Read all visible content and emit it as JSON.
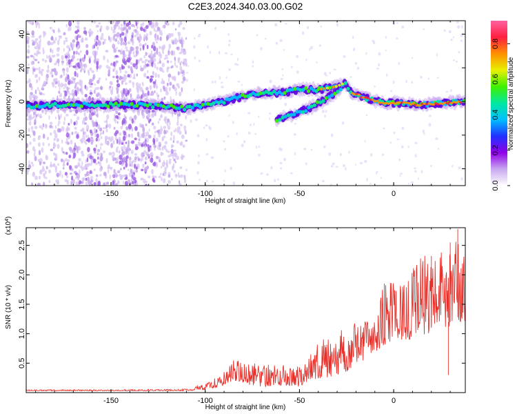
{
  "figure": {
    "title": "C2E3.2024.340.03.00.G02"
  },
  "chart_data": [
    {
      "type": "heatmap",
      "xlabel": "Height of straight line (km)",
      "ylabel": "Frequency (Hz)",
      "xlim": [
        -195,
        38
      ],
      "ylim": [
        -50,
        48
      ],
      "x_ticks": [
        -150,
        -100,
        -50,
        0
      ],
      "x_tick_labels": [
        "-150",
        "-100",
        "-50",
        "0"
      ],
      "y_ticks": [
        -40,
        -20,
        0,
        20,
        40
      ],
      "y_tick_labels": [
        "-40",
        "-20",
        "0",
        "20",
        "40"
      ],
      "grid": false,
      "colorbar": {
        "label": "Normalized spectral amplitude",
        "range": [
          0,
          0.93
        ],
        "ticks": [
          0.0,
          0.2,
          0.4,
          0.6,
          0.8
        ],
        "tick_labels": [
          "0.0",
          "0.2",
          "0.4",
          "0.6",
          "0.8"
        ],
        "colors": [
          "#ffffff",
          "#c8a8f0",
          "#9000e8",
          "#2030ff",
          "#00c0ff",
          "#00e8a0",
          "#40f000",
          "#e8f000",
          "#ff9000",
          "#ff2040",
          "#ff60a0"
        ]
      },
      "ridge": {
        "name": "main frequency ridge",
        "points": [
          [
            -195,
            -3
          ],
          [
            -180,
            -2
          ],
          [
            -165,
            -2
          ],
          [
            -150,
            -2
          ],
          [
            -135,
            -2
          ],
          [
            -120,
            -3
          ],
          [
            -110,
            -4
          ],
          [
            -100,
            -2
          ],
          [
            -90,
            0
          ],
          [
            -80,
            3
          ],
          [
            -70,
            5
          ],
          [
            -60,
            5
          ],
          [
            -50,
            7
          ],
          [
            -40,
            7
          ],
          [
            -30,
            9
          ],
          [
            -26,
            11
          ],
          [
            -22,
            5
          ],
          [
            -15,
            2
          ],
          [
            -5,
            -1
          ],
          [
            5,
            -1
          ],
          [
            15,
            -2
          ],
          [
            25,
            -1
          ],
          [
            38,
            0
          ]
        ]
      },
      "branch": {
        "name": "secondary branch",
        "points": [
          [
            -62,
            -11
          ],
          [
            -52,
            -7
          ],
          [
            -45,
            -4
          ],
          [
            -35,
            2
          ],
          [
            -28,
            8
          ]
        ]
      }
    },
    {
      "type": "line",
      "xlabel": "Height of straight line (km)",
      "ylabel": "SNR (10 * v/v)",
      "y_multiplier": "(x10",
      "y_multiplier_exp": "4",
      "y_multiplier_close": ")",
      "xlim": [
        -195,
        38
      ],
      "ylim": [
        0,
        2.8
      ],
      "x_ticks": [
        -150,
        -100,
        -50,
        0
      ],
      "x_tick_labels": [
        "-150",
        "-100",
        "-50",
        "0"
      ],
      "y_ticks": [
        0.5,
        1.0,
        1.5,
        2.0,
        2.5
      ],
      "y_tick_labels": [
        "0.5",
        "1.0",
        "1.5",
        "2.0",
        "2.5"
      ],
      "grid": false,
      "color": "#e8302a",
      "series": [
        {
          "name": "",
          "envelope": [
            [
              -195,
              0.03,
              0.05
            ],
            [
              -150,
              0.03,
              0.05
            ],
            [
              -110,
              0.03,
              0.06
            ],
            [
              -100,
              0.05,
              0.15
            ],
            [
              -90,
              0.12,
              0.35
            ],
            [
              -85,
              0.2,
              0.6
            ],
            [
              -80,
              0.15,
              0.5
            ],
            [
              -70,
              0.1,
              0.5
            ],
            [
              -60,
              0.12,
              0.45
            ],
            [
              -55,
              0.12,
              0.5
            ],
            [
              -50,
              0.1,
              0.45
            ],
            [
              -45,
              0.2,
              0.7
            ],
            [
              -40,
              0.2,
              0.85
            ],
            [
              -35,
              0.25,
              0.95
            ],
            [
              -30,
              0.3,
              1.05
            ],
            [
              -25,
              0.35,
              1.15
            ],
            [
              -20,
              0.5,
              1.25
            ],
            [
              -15,
              0.55,
              1.35
            ],
            [
              -10,
              0.65,
              1.45
            ],
            [
              -5,
              0.8,
              1.9
            ],
            [
              0,
              0.9,
              1.9
            ],
            [
              5,
              0.9,
              1.85
            ],
            [
              10,
              0.9,
              2.1
            ],
            [
              15,
              0.95,
              2.35
            ],
            [
              20,
              1.0,
              2.35
            ],
            [
              25,
              1.1,
              2.4
            ],
            [
              30,
              1.1,
              2.6
            ],
            [
              35,
              1.2,
              2.75
            ],
            [
              38,
              1.2,
              2.2
            ]
          ]
        }
      ]
    }
  ]
}
